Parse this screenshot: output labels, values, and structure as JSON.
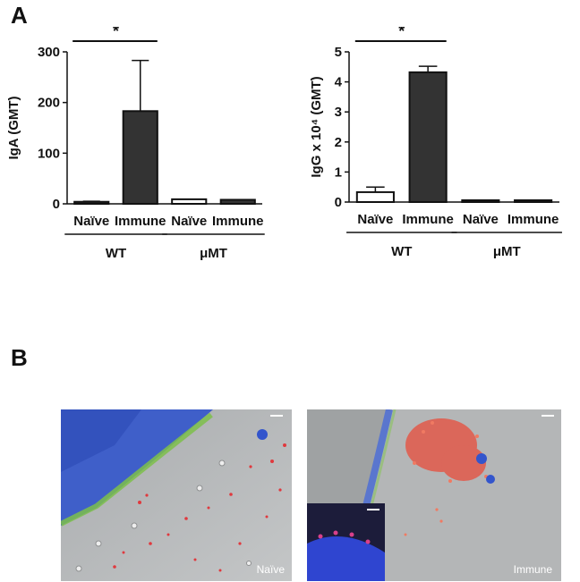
{
  "figure": {
    "panel_a_label": "A",
    "panel_b_label": "B",
    "micro_left_label": "Naïve",
    "micro_right_label": "Immune"
  },
  "colors": {
    "immune_bar": "#333333",
    "naive_bar": "#ffffff",
    "stroke": "#111111"
  },
  "chart_data": [
    {
      "type": "bar",
      "ylabel": "IgA (GMT)",
      "ylim": [
        0,
        300
      ],
      "yticks": [
        0,
        100,
        200,
        300
      ],
      "categories": [
        "Naïve",
        "Immune",
        "Naïve",
        "Immune"
      ],
      "groups": [
        "WT",
        "μMT"
      ],
      "values": [
        4,
        183,
        9,
        8
      ],
      "errors": [
        1,
        100,
        0,
        0
      ],
      "fill": [
        "#333333",
        "#333333",
        "#ffffff",
        "#333333"
      ],
      "significance": {
        "label": "*",
        "between": [
          0,
          1
        ]
      }
    },
    {
      "type": "bar",
      "ylabel": "IgG x 10⁴ (GMT)",
      "ylim": [
        0,
        5
      ],
      "yticks": [
        0,
        1,
        2,
        3,
        4,
        5
      ],
      "categories": [
        "Naïve",
        "Immune",
        "Naïve",
        "Immune"
      ],
      "groups": [
        "WT",
        "μMT"
      ],
      "values": [
        0.33,
        4.32,
        0.01,
        0.01
      ],
      "errors": [
        0.17,
        0.2,
        0,
        0
      ],
      "fill": [
        "#ffffff",
        "#333333",
        "#ffffff",
        "#333333"
      ],
      "significance": {
        "label": "*",
        "between": [
          0,
          1
        ]
      }
    }
  ]
}
